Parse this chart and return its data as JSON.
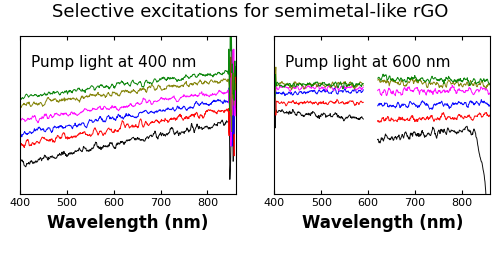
{
  "title": "Selective excitations for semimetal-like rGO",
  "title_fontsize": 13,
  "xlabel": "Wavelength (nm)",
  "xlabel_fontsize": 12,
  "xlim": [
    400,
    860
  ],
  "xticks": [
    400,
    500,
    600,
    700,
    800
  ],
  "left_label": "Pump light at 400 nm",
  "right_label": "Pump light at 600 nm",
  "label_fontsize": 11,
  "colors": [
    "black",
    "red",
    "blue",
    "magenta",
    "#808000",
    "green"
  ],
  "background_color": "#ffffff",
  "noise_seed": 42,
  "num_points": 600
}
